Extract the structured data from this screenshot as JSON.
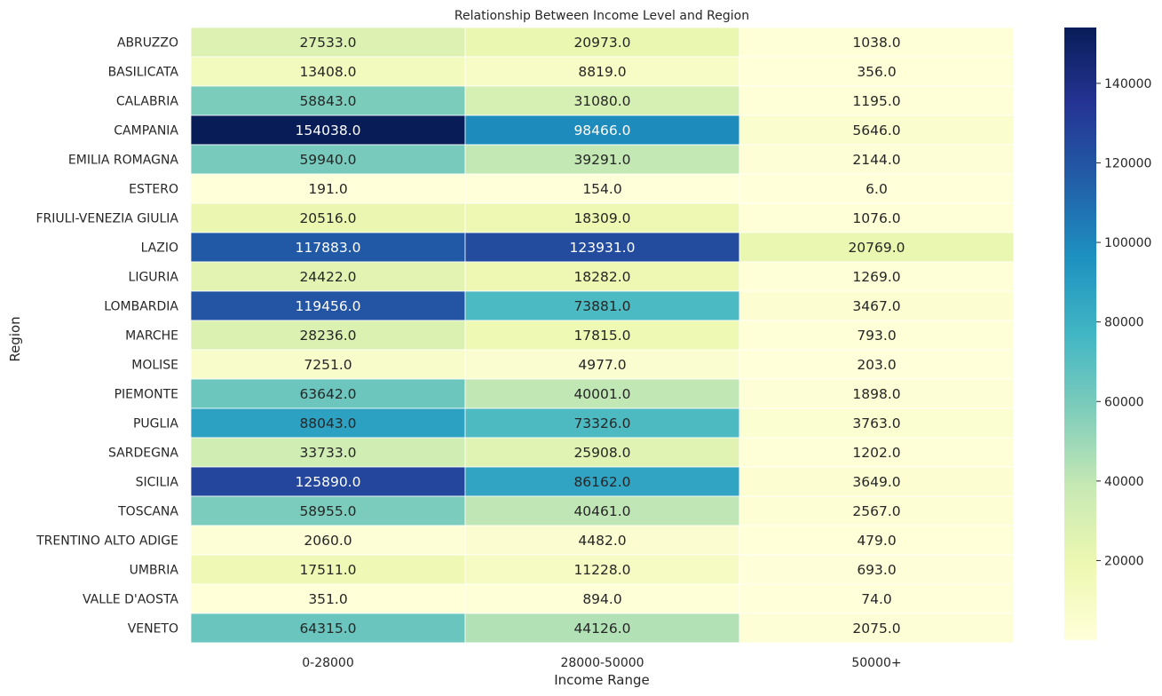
{
  "chart_data": {
    "type": "heatmap",
    "title": "Relationship Between Income Level and Region",
    "xlabel": "Income Range",
    "ylabel": "Region",
    "x_categories": [
      "0-28000",
      "28000-50000",
      "50000+"
    ],
    "y_categories": [
      "ABRUZZO",
      "BASILICATA",
      "CALABRIA",
      "CAMPANIA",
      "EMILIA ROMAGNA",
      "ESTERO",
      "FRIULI-VENEZIA GIULIA",
      "LAZIO",
      "LIGURIA",
      "LOMBARDIA",
      "MARCHE",
      "MOLISE",
      "PIEMONTE",
      "PUGLIA",
      "SARDEGNA",
      "SICILIA",
      "TOSCANA",
      "TRENTINO ALTO ADIGE",
      "UMBRIA",
      "VALLE D'AOSTA",
      "VENETO"
    ],
    "values": [
      [
        27533.0,
        20973.0,
        1038.0
      ],
      [
        13408.0,
        8819.0,
        356.0
      ],
      [
        58843.0,
        31080.0,
        1195.0
      ],
      [
        154038.0,
        98466.0,
        5646.0
      ],
      [
        59940.0,
        39291.0,
        2144.0
      ],
      [
        191.0,
        154.0,
        6.0
      ],
      [
        20516.0,
        18309.0,
        1076.0
      ],
      [
        117883.0,
        123931.0,
        20769.0
      ],
      [
        24422.0,
        18282.0,
        1269.0
      ],
      [
        119456.0,
        73881.0,
        3467.0
      ],
      [
        28236.0,
        17815.0,
        793.0
      ],
      [
        7251.0,
        4977.0,
        203.0
      ],
      [
        63642.0,
        40001.0,
        1898.0
      ],
      [
        88043.0,
        73326.0,
        3763.0
      ],
      [
        33733.0,
        25908.0,
        1202.0
      ],
      [
        125890.0,
        86162.0,
        3649.0
      ],
      [
        58955.0,
        40461.0,
        2567.0
      ],
      [
        2060.0,
        4482.0,
        479.0
      ],
      [
        17511.0,
        11228.0,
        693.0
      ],
      [
        351.0,
        894.0,
        74.0
      ],
      [
        64315.0,
        44126.0,
        2075.0
      ]
    ],
    "colormap": "YlGnBu",
    "color_range": [
      6.0,
      154038.0
    ],
    "colorbar_ticks": [
      20000,
      40000,
      60000,
      80000,
      100000,
      120000,
      140000
    ],
    "annotations": true,
    "annotation_format": "one-decimal",
    "grid_lines": "white",
    "legend": "colorbar-right"
  }
}
